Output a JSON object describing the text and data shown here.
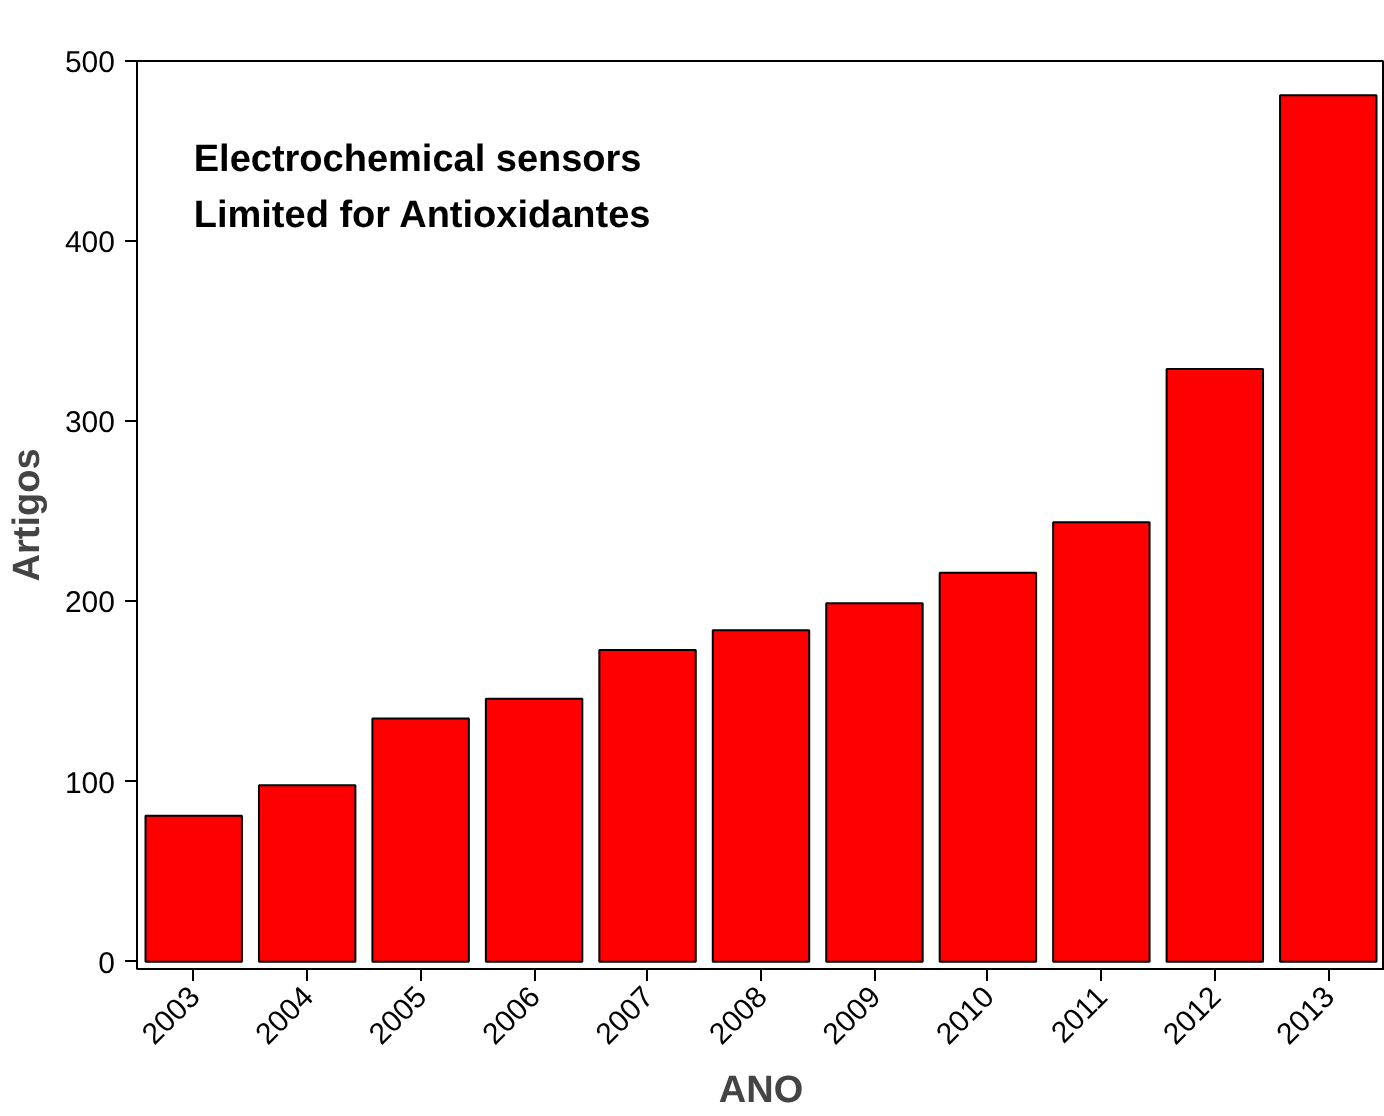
{
  "chart_data": {
    "type": "bar",
    "xlabel": "ANO",
    "ylabel": "Artigos",
    "categories": [
      "2003",
      "2004",
      "2005",
      "2006",
      "2007",
      "2008",
      "2009",
      "2010",
      "2011",
      "2012",
      "2013"
    ],
    "values": [
      81,
      98,
      135,
      146,
      173,
      184,
      199,
      216,
      244,
      329,
      481
    ],
    "color": "#ff0000",
    "ylim": [
      -4,
      500
    ],
    "yticks": [
      0,
      100,
      200,
      300,
      400,
      500
    ],
    "grid": false,
    "annotations": [
      "Electrochemical sensors",
      "Limited for Antioxidantes"
    ]
  }
}
